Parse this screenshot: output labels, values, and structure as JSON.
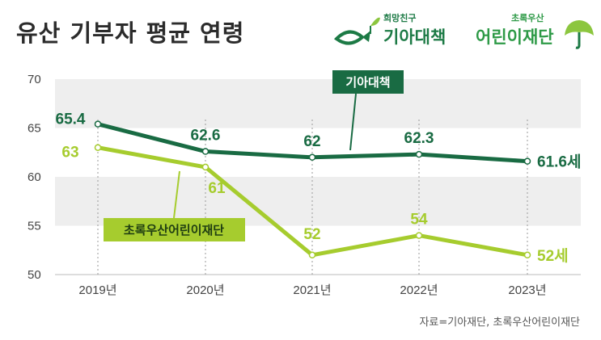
{
  "header": {
    "title": "유산 기부자 평균 연령"
  },
  "logos": {
    "kfhi_small": "희망친구",
    "kfhi_big": "기아대책",
    "cf_small": "초록우산",
    "cf_big": "어린이재단"
  },
  "source": "자료=기아재단, 초록우산어린이재단",
  "colors": {
    "dark_green": "#196b43",
    "light_green": "#a6cc2e",
    "band": "#eeeeee"
  },
  "chart_data": {
    "type": "line",
    "title": "유산 기부자 평균 연령",
    "categories": [
      "2019년",
      "2020년",
      "2021년",
      "2022년",
      "2023년"
    ],
    "ylim": [
      50,
      70
    ],
    "yticks": [
      "50",
      "55",
      "60",
      "65",
      "70"
    ],
    "grid": "alternating horizontal bands",
    "series": [
      {
        "name": "기아대책",
        "values": [
          65.4,
          62.6,
          62,
          62.3,
          61.6
        ],
        "labels": [
          "65.4",
          "62.6",
          "62",
          "62.3",
          "61.6"
        ],
        "unit": "세",
        "color": "#196b43"
      },
      {
        "name": "초록우산어린이재단",
        "values": [
          63,
          61,
          52,
          54,
          52
        ],
        "labels": [
          "63",
          "61",
          "52",
          "54",
          "52"
        ],
        "unit": "세",
        "color": "#a6cc2e"
      }
    ]
  }
}
